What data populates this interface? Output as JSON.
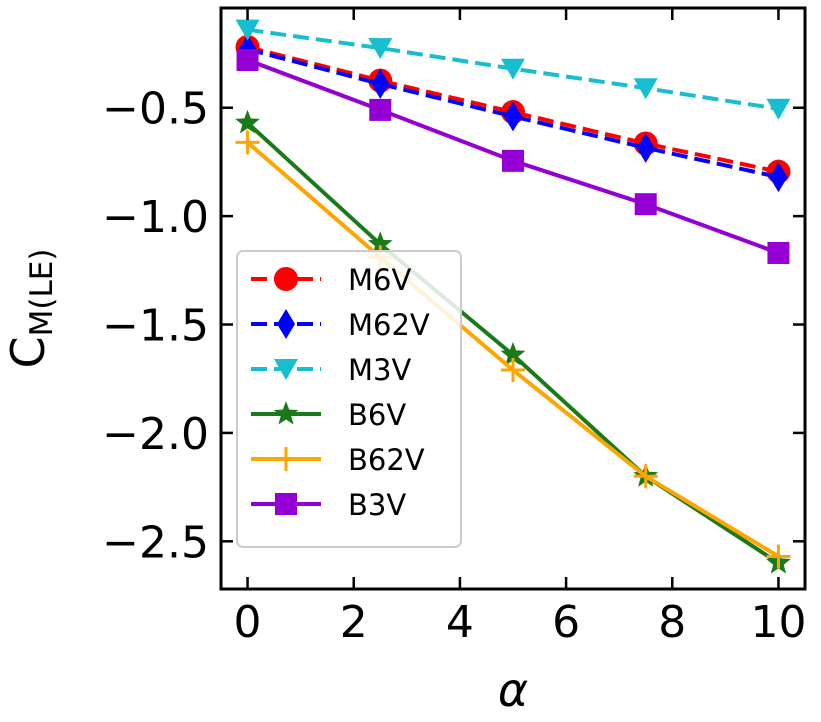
{
  "chart_data": {
    "type": "line",
    "xlabel": "α",
    "ylabel_main": "C",
    "ylabel_sub": "M(LE)",
    "xlim": [
      -0.5,
      10.5
    ],
    "ylim": [
      -2.72,
      -0.04
    ],
    "xticks": [
      0,
      2,
      4,
      6,
      8,
      10
    ],
    "xtick_labels": [
      "0",
      "2",
      "4",
      "6",
      "8",
      "10"
    ],
    "yticks": [
      -0.5,
      -1.0,
      -1.5,
      -2.0,
      -2.5
    ],
    "ytick_labels": [
      "−0.5",
      "−1.0",
      "−1.5",
      "−2.0",
      "−2.5"
    ],
    "legend_position": "lower-left",
    "grid": false,
    "x": [
      0,
      2.5,
      5,
      7.5,
      10
    ],
    "series": [
      {
        "name": "M6V",
        "color": "#ff0000",
        "dash": "dashed",
        "marker": "circle",
        "values": [
          -0.22,
          -0.375,
          -0.52,
          -0.665,
          -0.795
        ]
      },
      {
        "name": "M62V",
        "color": "#0000ff",
        "dash": "dashed",
        "marker": "diamond",
        "values": [
          -0.23,
          -0.39,
          -0.54,
          -0.685,
          -0.82
        ]
      },
      {
        "name": "M3V",
        "color": "#17becf",
        "dash": "dashed",
        "marker": "triangle-down",
        "values": [
          -0.14,
          -0.225,
          -0.32,
          -0.41,
          -0.505
        ]
      },
      {
        "name": "B6V",
        "color": "#1a7a1a",
        "dash": "solid",
        "marker": "star",
        "values": [
          -0.57,
          -1.13,
          -1.64,
          -2.2,
          -2.6
        ]
      },
      {
        "name": "B62V",
        "color": "#ffa500",
        "dash": "solid",
        "marker": "plus",
        "values": [
          -0.66,
          -1.19,
          -1.71,
          -2.2,
          -2.57
        ]
      },
      {
        "name": "B3V",
        "color": "#9400d3",
        "dash": "solid",
        "marker": "square",
        "values": [
          -0.28,
          -0.51,
          -0.745,
          -0.945,
          -1.17
        ]
      }
    ]
  }
}
